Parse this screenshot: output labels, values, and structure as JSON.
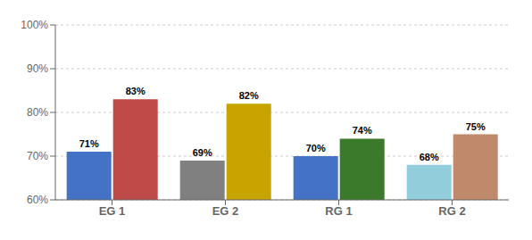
{
  "chart_data": {
    "type": "bar",
    "categories": [
      "EG 1",
      "EG 2",
      "RG 1",
      "RG 2"
    ],
    "series": [
      {
        "values": [
          71,
          69,
          70,
          68
        ],
        "value_labels": [
          "71%",
          "69%",
          "70%",
          "68%"
        ],
        "colors": [
          "#4472C4",
          "#808080",
          "#4472C4",
          "#92CDDC"
        ]
      },
      {
        "values": [
          83,
          82,
          74,
          75
        ],
        "value_labels": [
          "83%",
          "82%",
          "74%",
          "75%"
        ],
        "colors": [
          "#BE4B48",
          "#C8A400",
          "#3A7A2A",
          "#C0896B"
        ]
      }
    ],
    "ylim": [
      60,
      100
    ],
    "yticks": [
      {
        "value": 60,
        "label": "60%"
      },
      {
        "value": 70,
        "label": "70%"
      },
      {
        "value": 80,
        "label": "80%"
      },
      {
        "value": 90,
        "label": "90%"
      },
      {
        "value": 100,
        "label": "100%"
      }
    ],
    "grid": true,
    "data_labels": true
  }
}
